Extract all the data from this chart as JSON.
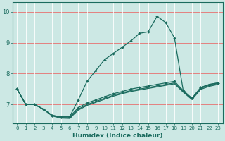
{
  "xlabel": "Humidex (Indice chaleur)",
  "bg_color": "#cce8e4",
  "line_color": "#1a6b5e",
  "xlim": [
    -0.5,
    23.5
  ],
  "ylim": [
    6.4,
    10.3
  ],
  "yticks": [
    7,
    8,
    9,
    10
  ],
  "xticks": [
    0,
    1,
    2,
    3,
    4,
    5,
    6,
    7,
    8,
    9,
    10,
    11,
    12,
    13,
    14,
    15,
    16,
    17,
    18,
    19,
    20,
    21,
    22,
    23
  ],
  "series1_x": [
    0,
    1,
    2,
    3,
    4,
    5,
    6,
    7,
    8,
    9,
    10,
    11,
    12,
    13,
    14,
    15,
    16,
    17,
    18,
    19,
    20,
    21,
    22,
    23
  ],
  "series1_y": [
    7.5,
    7.0,
    7.0,
    6.85,
    6.65,
    6.6,
    6.6,
    7.15,
    7.75,
    8.1,
    8.45,
    8.65,
    8.85,
    9.05,
    9.3,
    9.35,
    9.85,
    9.65,
    9.15,
    7.45,
    7.2,
    7.55,
    7.65,
    7.7
  ],
  "series2_x": [
    0,
    1,
    2,
    3,
    4,
    5,
    6,
    7,
    8,
    9,
    10,
    11,
    12,
    13,
    14,
    15,
    16,
    17,
    18,
    19,
    20,
    21,
    22,
    23
  ],
  "series2_y": [
    7.5,
    7.0,
    7.0,
    6.85,
    6.65,
    6.6,
    6.6,
    6.9,
    7.05,
    7.15,
    7.25,
    7.35,
    7.42,
    7.5,
    7.55,
    7.6,
    7.65,
    7.7,
    7.75,
    7.45,
    7.2,
    7.55,
    7.65,
    7.7
  ],
  "series3_x": [
    0,
    1,
    2,
    3,
    4,
    5,
    6,
    7,
    8,
    9,
    10,
    11,
    12,
    13,
    14,
    15,
    16,
    17,
    18,
    19,
    20,
    21,
    22,
    23
  ],
  "series3_y": [
    7.5,
    7.0,
    7.0,
    6.85,
    6.65,
    6.58,
    6.57,
    6.85,
    7.0,
    7.1,
    7.2,
    7.3,
    7.38,
    7.45,
    7.5,
    7.55,
    7.6,
    7.65,
    7.7,
    7.42,
    7.18,
    7.52,
    7.62,
    7.68
  ],
  "series4_x": [
    0,
    1,
    2,
    3,
    4,
    5,
    6,
    7,
    8,
    9,
    10,
    11,
    12,
    13,
    14,
    15,
    16,
    17,
    18,
    19,
    20,
    21,
    22,
    23
  ],
  "series4_y": [
    7.5,
    7.0,
    7.0,
    6.85,
    6.63,
    6.56,
    6.55,
    6.82,
    6.97,
    7.07,
    7.17,
    7.27,
    7.35,
    7.42,
    7.47,
    7.52,
    7.57,
    7.62,
    7.67,
    7.4,
    7.16,
    7.49,
    7.59,
    7.65
  ]
}
